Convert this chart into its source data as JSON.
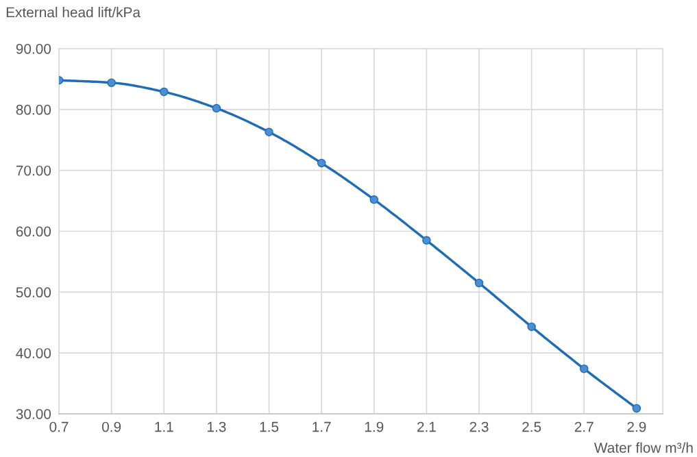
{
  "chart_data": {
    "type": "line",
    "xlabel": "Water flow m³/h",
    "ylabel": "External head lift/kPa",
    "x": [
      0.7,
      0.9,
      1.1,
      1.3,
      1.5,
      1.7,
      1.9,
      2.1,
      2.3,
      2.5,
      2.7,
      2.9
    ],
    "series": [
      {
        "color": "#1f6db5",
        "values": [
          84.8,
          84.4,
          82.9,
          80.2,
          76.3,
          71.2,
          65.2,
          58.5,
          51.5,
          44.3,
          37.4,
          30.9
        ]
      }
    ],
    "xlim": [
      0.7,
      3.0
    ],
    "xticks": [
      0.7,
      0.9,
      1.1,
      1.3,
      1.5,
      1.7,
      1.9,
      2.1,
      2.3,
      2.5,
      2.7,
      2.9
    ],
    "ylim": [
      30,
      90
    ],
    "yticks": [
      {
        "value": 30,
        "label": "30.00"
      },
      {
        "value": 40,
        "label": "40.00"
      },
      {
        "value": 50,
        "label": "50.00"
      },
      {
        "value": 60,
        "label": "60.00"
      },
      {
        "value": 70,
        "label": "70.00"
      },
      {
        "value": 80,
        "label": "80.00"
      },
      {
        "value": 90,
        "label": "90.00"
      }
    ],
    "grid": true,
    "marker": "circle",
    "line_style": "solid",
    "legend": false
  }
}
